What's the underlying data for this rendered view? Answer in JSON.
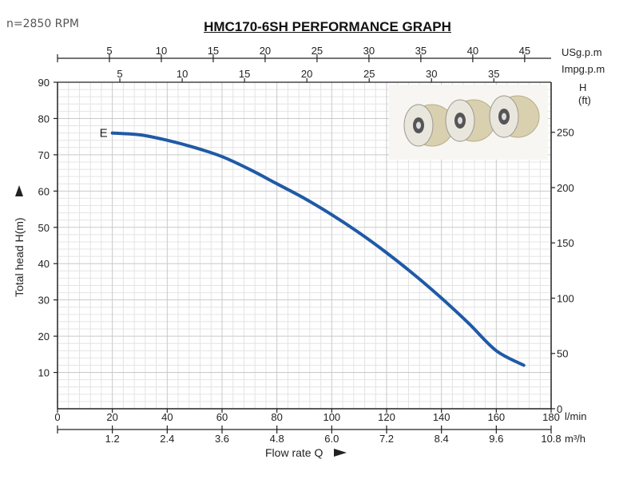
{
  "speed_note": "n=2850 RPM",
  "chart_data": {
    "type": "line",
    "title": "HMC170-6SH PERFORMANCE GRAPH",
    "xlabel": "Flow rate Q",
    "xunit": "l/min",
    "xlim": [
      0,
      180
    ],
    "xticks": [
      0,
      20,
      40,
      60,
      80,
      100,
      120,
      140,
      160,
      180
    ],
    "ylabel": "Total  head H(m)",
    "ylim": [
      0,
      90
    ],
    "yticks": [
      10,
      20,
      30,
      40,
      50,
      60,
      70,
      80,
      90
    ],
    "secondary_axes": {
      "m3h": {
        "unit": "m³/h",
        "ticks": [
          1.2,
          2.4,
          3.6,
          4.8,
          6.0,
          7.2,
          8.4,
          9.6,
          10.8
        ],
        "tick_labels": [
          "1.2",
          "2.4",
          "3.6",
          "4.8",
          "6.0",
          "7.2",
          "8.4",
          "9.6",
          "10.8"
        ]
      },
      "usgpm": {
        "unit": "USg.p.m",
        "ticks": [
          5,
          10,
          15,
          20,
          25,
          30,
          35,
          40,
          45
        ]
      },
      "impgpm": {
        "unit": "Impg.p.m",
        "ticks": [
          5,
          10,
          15,
          20,
          25,
          30,
          35
        ]
      },
      "head_ft": {
        "label": "H",
        "unit": "(ft)",
        "ticks": [
          0,
          50,
          100,
          150,
          200,
          250
        ]
      }
    },
    "grid": true,
    "series": [
      {
        "name": "E",
        "color": "#1f5aa6",
        "x": [
          20,
          30,
          40,
          50,
          60,
          70,
          80,
          90,
          100,
          110,
          120,
          130,
          140,
          150,
          160,
          170
        ],
        "y": [
          76,
          75.5,
          74,
          72,
          69.5,
          66,
          62,
          58,
          53.5,
          48.5,
          43,
          37,
          30.5,
          23.5,
          16,
          12
        ]
      }
    ]
  }
}
